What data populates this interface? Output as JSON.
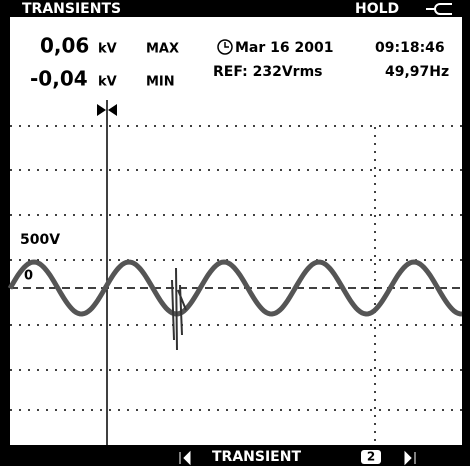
{
  "header": {
    "title": "TRANSIENTS",
    "status": "HOLD"
  },
  "readings": [
    {
      "value": "0,06",
      "unit": "kV",
      "label": "MAX"
    },
    {
      "value": "-0,04",
      "unit": "kV",
      "label": "MIN"
    }
  ],
  "info": {
    "date": "Mar 16 2001",
    "time": "09:18:46",
    "reference": "REF: 232Vrms",
    "frequency": "49,97Hz"
  },
  "scope": {
    "level_label": "500V",
    "zero_label": "0"
  },
  "footer": {
    "mode": "TRANSIENT",
    "page": "2"
  }
}
